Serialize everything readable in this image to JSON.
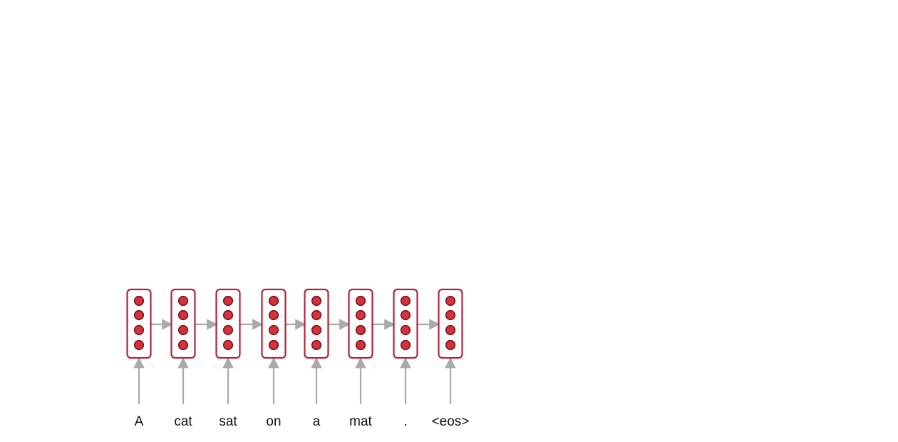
{
  "diagram": {
    "type": "rnn-unrolled",
    "tokens": [
      "A",
      "cat",
      "sat",
      "on",
      "a",
      "mat",
      ".",
      "<eos>"
    ],
    "units_per_cell": 4,
    "colors": {
      "cell_border": "#b0243a",
      "node_fill": "#d6323c",
      "node_stroke": "#7a1020",
      "arrow": "#aaaaaa",
      "text": "#111111"
    }
  }
}
